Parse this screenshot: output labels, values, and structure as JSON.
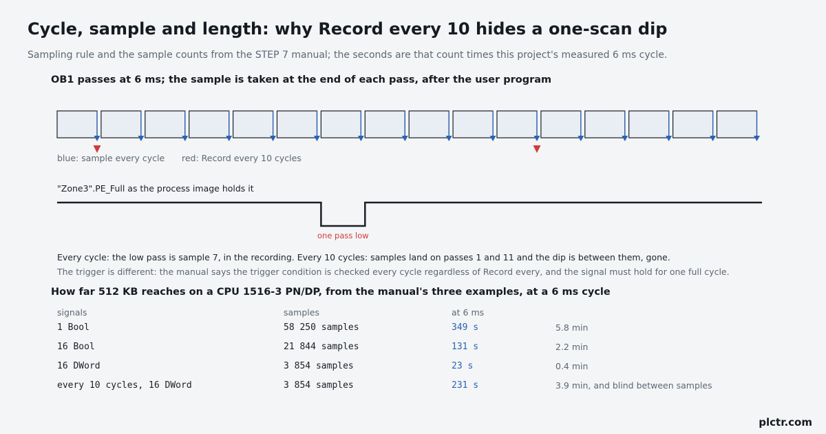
{
  "title": "Cycle, sample and length: why Record every 10 hides a one-scan dip",
  "subtitle": "Sampling rule and the sample counts from the STEP 7 manual; the seconds are that count times this project's measured 6 ms cycle.",
  "section1": {
    "heading": "OB1 passes at 6 ms; the sample is taken at the end of each pass, after the user program",
    "cycle_count": 16,
    "red_sample_passes": [
      1,
      11
    ],
    "legend_blue": "blue: sample every cycle",
    "legend_red": "red: Record every 10 cycles",
    "signal_label": "\"Zone3\".PE_Full as the process image holds it",
    "dip_pass": 7,
    "dip_label": "one pass low",
    "note_every": "Every cycle: the low pass is sample 7, in the recording. Every 10 cycles: samples land on passes 1 and 11 and the dip is between them, gone.",
    "note_trigger": "The trigger is different: the manual says the trigger condition is checked every cycle regardless of Record every, and the signal must hold for one full cycle."
  },
  "section2": {
    "heading": "How far 512 KB reaches on a CPU 1516-3 PN/DP, from the manual's three examples, at a 6 ms cycle",
    "columns": [
      "signals",
      "samples",
      "at 6 ms"
    ],
    "rows": [
      {
        "signals": "1 Bool",
        "samples": "58 250 samples",
        "seconds": "349 s",
        "minutes": "5.8 min"
      },
      {
        "signals": "16 Bool",
        "samples": "21 844 samples",
        "seconds": "131 s",
        "minutes": "2.2 min"
      },
      {
        "signals": "16 DWord",
        "samples": "3 854 samples",
        "seconds": "23 s",
        "minutes": "0.4 min"
      },
      {
        "signals": "every 10 cycles, 16 DWord",
        "samples": "3 854 samples",
        "seconds": "231 s",
        "minutes": "3.9 min, and blind between samples"
      }
    ]
  },
  "colors": {
    "blue_marker": "#2a63b4",
    "red_marker": "#d23b3b",
    "cycle_fill": "#e9eef5",
    "ink": "#1a1f26"
  },
  "brand": "plctr.com"
}
